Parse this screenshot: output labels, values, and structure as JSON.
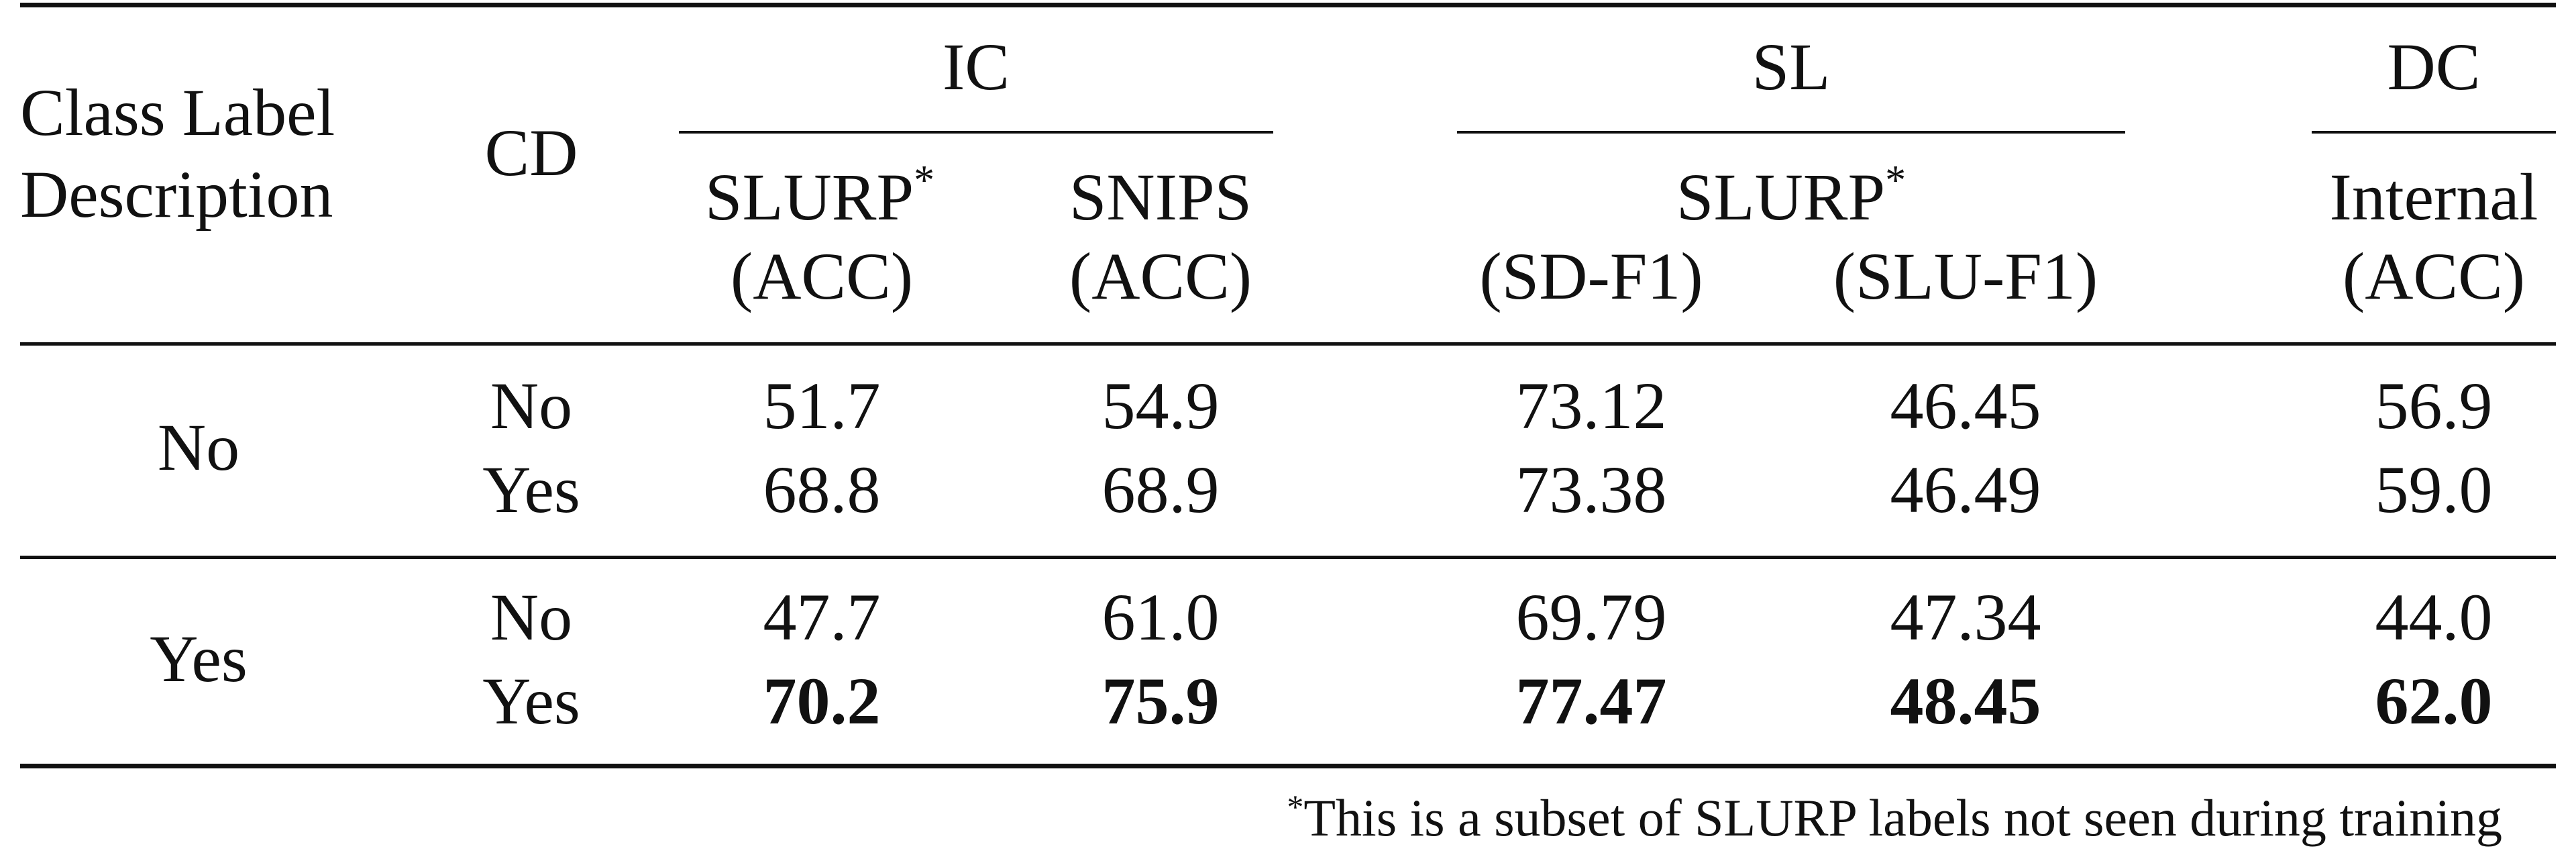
{
  "header": {
    "class_label_desc_line1": "Class Label",
    "class_label_desc_line2": "Description",
    "cd": "CD",
    "groups": {
      "ic": "IC",
      "sl": "SL",
      "dc": "DC"
    },
    "sub": {
      "slurp_ic": "SLURP",
      "slurp_ic_metric": "(ACC)",
      "snips": "SNIPS",
      "snips_metric": "(ACC)",
      "slurp_sl": "SLURP",
      "sd_f1": "(SD-F1)",
      "slu_f1": "(SLU-F1)",
      "internal": "Internal",
      "internal_metric": "(ACC)",
      "asterisk": "*"
    }
  },
  "rows": [
    {
      "cld": "No",
      "cd": "No",
      "slurp_acc": "51.7",
      "snips_acc": "54.9",
      "sd_f1": "73.12",
      "slu_f1": "46.45",
      "internal_acc": "56.9"
    },
    {
      "cld": "",
      "cd": "Yes",
      "slurp_acc": "68.8",
      "snips_acc": "68.9",
      "sd_f1": "73.38",
      "slu_f1": "46.49",
      "internal_acc": "59.0"
    },
    {
      "cld": "Yes",
      "cd": "No",
      "slurp_acc": "47.7",
      "snips_acc": "61.0",
      "sd_f1": "69.79",
      "slu_f1": "47.34",
      "internal_acc": "44.0"
    },
    {
      "cld": "",
      "cd": "Yes",
      "slurp_acc": "70.2",
      "snips_acc": "75.9",
      "sd_f1": "77.47",
      "slu_f1": "48.45",
      "internal_acc": "62.0",
      "bold": true
    }
  ],
  "footnote": {
    "mark": "*",
    "text": "This is a subset of SLURP labels not seen during training"
  }
}
